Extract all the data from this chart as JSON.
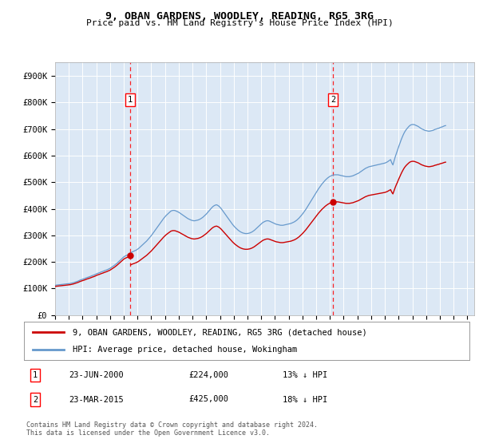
{
  "title": "9, OBAN GARDENS, WOODLEY, READING, RG5 3RG",
  "subtitle": "Price paid vs. HM Land Registry's House Price Index (HPI)",
  "ylim": [
    0,
    950000
  ],
  "yticks": [
    0,
    100000,
    200000,
    300000,
    400000,
    500000,
    600000,
    700000,
    800000,
    900000
  ],
  "ytick_labels": [
    "£0",
    "£100K",
    "£200K",
    "£300K",
    "£400K",
    "£500K",
    "£600K",
    "£700K",
    "£800K",
    "£900K"
  ],
  "background_color": "#dce8f5",
  "hpi_color": "#6699cc",
  "price_color": "#cc0000",
  "sale1_year": 2000.47,
  "sale1_price": 224000,
  "sale2_year": 2015.22,
  "sale2_price": 425000,
  "legend_line1": "9, OBAN GARDENS, WOODLEY, READING, RG5 3RG (detached house)",
  "legend_line2": "HPI: Average price, detached house, Wokingham",
  "table_row1": [
    "1",
    "23-JUN-2000",
    "£224,000",
    "13% ↓ HPI"
  ],
  "table_row2": [
    "2",
    "23-MAR-2015",
    "£425,000",
    "18% ↓ HPI"
  ],
  "footer": "Contains HM Land Registry data © Crown copyright and database right 2024.\nThis data is licensed under the Open Government Licence v3.0.",
  "hpi_data_monthly": {
    "start_year": 1995.0,
    "step": 0.08333333,
    "values": [
      112000,
      113000,
      113500,
      114000,
      114500,
      115000,
      115500,
      116000,
      116500,
      117000,
      117500,
      118000,
      118500,
      119000,
      120000,
      121000,
      122000,
      123500,
      125000,
      126500,
      128000,
      130000,
      132000,
      133500,
      135000,
      136500,
      138000,
      140000,
      141500,
      143000,
      144500,
      146000,
      148000,
      149500,
      151000,
      153000,
      155000,
      157000,
      158500,
      160000,
      162000,
      163500,
      165000,
      167000,
      168500,
      170000,
      172000,
      174000,
      176000,
      179000,
      182000,
      185000,
      188000,
      191500,
      195000,
      199000,
      203000,
      207000,
      211000,
      215000,
      219000,
      222000,
      224000,
      226000,
      228000,
      231000,
      234000,
      237000,
      239000,
      241000,
      243000,
      245000,
      248000,
      251000,
      255000,
      259000,
      263000,
      267000,
      271000,
      275000,
      279000,
      284000,
      289000,
      294000,
      299000,
      305000,
      311000,
      317000,
      323000,
      329000,
      335000,
      341000,
      347000,
      353000,
      359000,
      365000,
      370000,
      375000,
      379000,
      383000,
      387000,
      391000,
      393000,
      394000,
      394000,
      393000,
      391000,
      389000,
      387000,
      384000,
      381000,
      378000,
      375000,
      372000,
      369000,
      366000,
      363000,
      361000,
      359000,
      357000,
      356000,
      355000,
      355000,
      356000,
      357000,
      358000,
      360000,
      362000,
      365000,
      368000,
      372000,
      376000,
      380000,
      385000,
      390000,
      395000,
      400000,
      405000,
      409000,
      412000,
      414000,
      415000,
      413000,
      410000,
      406000,
      401000,
      395000,
      389000,
      383000,
      377000,
      371000,
      365000,
      359000,
      353000,
      347000,
      341000,
      336000,
      331000,
      327000,
      323000,
      319000,
      316000,
      313000,
      311000,
      309000,
      308000,
      307000,
      307000,
      307000,
      308000,
      309000,
      311000,
      313000,
      316000,
      319000,
      323000,
      327000,
      331000,
      335000,
      339000,
      343000,
      347000,
      350000,
      352000,
      354000,
      355000,
      355000,
      354000,
      352000,
      350000,
      348000,
      346000,
      344000,
      342000,
      341000,
      340000,
      339000,
      338000,
      338000,
      338000,
      339000,
      340000,
      341000,
      342000,
      343000,
      344000,
      345000,
      347000,
      349000,
      351000,
      354000,
      357000,
      361000,
      365000,
      370000,
      375000,
      380000,
      386000,
      392000,
      398000,
      405000,
      412000,
      419000,
      426000,
      433000,
      440000,
      447000,
      454000,
      461000,
      468000,
      475000,
      481000,
      487000,
      493000,
      498000,
      503000,
      508000,
      512000,
      516000,
      519000,
      522000,
      524000,
      526000,
      527000,
      528000,
      528000,
      528000,
      528000,
      527000,
      526000,
      525000,
      524000,
      523000,
      522000,
      521000,
      521000,
      521000,
      521000,
      522000,
      523000,
      524000,
      526000,
      528000,
      530000,
      532000,
      534000,
      537000,
      540000,
      543000,
      546000,
      549000,
      552000,
      554000,
      556000,
      558000,
      559000,
      560000,
      561000,
      562000,
      563000,
      564000,
      565000,
      566000,
      567000,
      568000,
      569000,
      570000,
      571000,
      572000,
      574000,
      576000,
      579000,
      582000,
      585000,
      573000,
      565000,
      580000,
      595000,
      608000,
      620000,
      633000,
      645000,
      657000,
      668000,
      678000,
      687000,
      694000,
      700000,
      705000,
      710000,
      714000,
      716000,
      717000,
      717000,
      716000,
      714000,
      712000,
      710000,
      707000,
      704000,
      701000,
      699000,
      697000,
      695000,
      694000,
      693000,
      692000,
      692000,
      693000,
      694000,
      695000,
      697000,
      699000,
      700000,
      702000,
      703000,
      705000,
      707000,
      708000,
      710000,
      712000,
      713000
    ]
  }
}
